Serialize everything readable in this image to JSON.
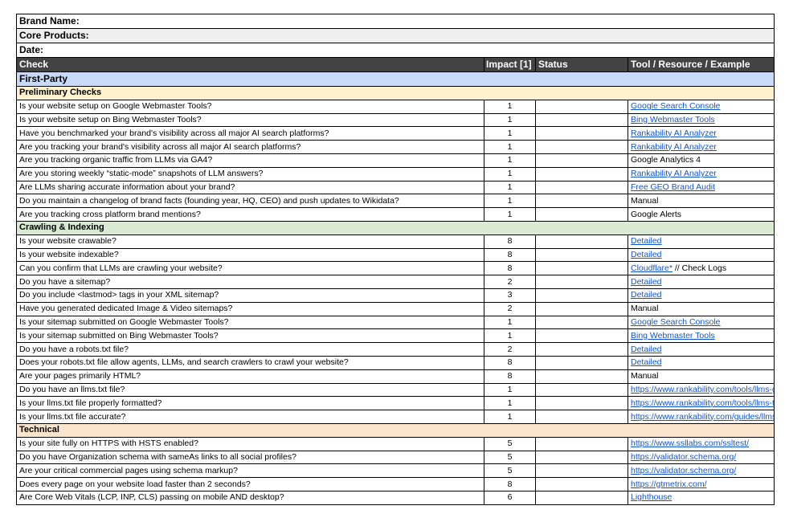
{
  "meta": {
    "brand_name": "Brand Name:",
    "core_products": "Core Products:",
    "date": "Date:"
  },
  "columns": {
    "check": "Check",
    "impact": "Impact [1]",
    "status": "Status",
    "tool": "Tool / Resource / Example"
  },
  "section": "First-Party",
  "colors": {
    "header_bg": "#434343",
    "section_bg": "#c9daf8",
    "link": "#1155cc"
  },
  "groups": [
    {
      "title": "Preliminary Checks",
      "color": "#fff2cc",
      "rows": [
        {
          "check": "Is your website setup on Google Webmaster Tools?",
          "impact": "1",
          "tool": "Google Search Console",
          "link": true
        },
        {
          "check": "Is your website setup on Bing Webmaster Tools?",
          "impact": "1",
          "tool": "Bing Webmaster Tools",
          "link": true
        },
        {
          "check": "Have you benchmarked your brand's visibility across all major AI search platforms?",
          "impact": "1",
          "tool": "Rankability AI Analyzer",
          "link": true
        },
        {
          "check": "Are you tracking your brand's visibility across all major AI search platforms?",
          "impact": "1",
          "tool": "Rankability AI Analyzer",
          "link": true
        },
        {
          "check": "Are you tracking organic traffic from LLMs via GA4?",
          "impact": "1",
          "tool": "Google Analytics 4",
          "link": false
        },
        {
          "check": "Are you storing weekly “static-mode” snapshots of LLM answers?",
          "impact": "1",
          "tool": "Rankability AI Analyzer",
          "link": true
        },
        {
          "check": "Are LLMs sharing accurate information about your brand?",
          "impact": "1",
          "tool": "Free GEO Brand Audit",
          "link": true
        },
        {
          "check": "Do you maintain a changelog of brand facts (founding year, HQ, CEO) and push updates to Wikidata?",
          "impact": "1",
          "tool": "Manual",
          "link": false
        },
        {
          "check": "Are you tracking cross platform brand mentions?",
          "impact": "1",
          "tool": "Google Alerts",
          "link": false
        }
      ]
    },
    {
      "title": "Crawling & Indexing",
      "color": "#d9ead3",
      "rows": [
        {
          "check": "Is your website crawable?",
          "impact": "8",
          "tool": "Detailed",
          "link": true
        },
        {
          "check": "Is your website indexable?",
          "impact": "8",
          "tool": "Detailed",
          "link": true
        },
        {
          "check": "Can you confirm that LLMs are crawling your website?",
          "impact": "8",
          "tool": "Cloudflare*",
          "link": true,
          "suffix": " // Check Logs"
        },
        {
          "check": "Do you have a sitemap?",
          "impact": "2",
          "tool": "Detailed",
          "link": true
        },
        {
          "check": "Do you include <lastmod> tags in your XML sitemap?",
          "impact": "3",
          "tool": "Detailed",
          "link": true
        },
        {
          "check": "Have you generated dedicated Image & Video sitemaps?",
          "impact": "2",
          "tool": "Manual",
          "link": false
        },
        {
          "check": "Is your sitemap submitted on Google Webmaster Tools?",
          "impact": "1",
          "tool": "Google Search Console",
          "link": true
        },
        {
          "check": "Is your sitemap submitted on Bing Webmaster Tools?",
          "impact": "1",
          "tool": "Bing Webmaster Tools",
          "link": true
        },
        {
          "check": "Do you have a robots.txt file?",
          "impact": "2",
          "tool": "Detailed",
          "link": true
        },
        {
          "check": "Does your robots.txt file allow agents, LLMs, and search crawlers to crawl your website?",
          "impact": "8",
          "tool": "Detailed",
          "link": true
        },
        {
          "check": "Are your pages primarily HTML?",
          "impact": "8",
          "tool": "Manual",
          "link": false
        },
        {
          "check": "Do you have an llms.txt file?",
          "impact": "1",
          "tool": "https://www.rankability.com/tools/llms-g",
          "link": true
        },
        {
          "check": "Is your llms.txt file properly formatted?",
          "impact": "1",
          "tool": "https://www.rankability.com/tools/llms-tx",
          "link": true
        },
        {
          "check": "Is your llms.txt file accurate?",
          "impact": "1",
          "tool": "https://www.rankability.com/guides/llms",
          "link": true
        }
      ]
    },
    {
      "title": "Technical",
      "color": "#fce5cd",
      "rows": [
        {
          "check": "Is your site fully on HTTPS with HSTS enabled?",
          "impact": "5",
          "tool": "https://www.ssllabs.com/ssltest/",
          "link": true
        },
        {
          "check": "Do you have Organization schema with sameAs links to all social profiles?",
          "impact": "5",
          "tool": "https://validator.schema.org/",
          "link": true
        },
        {
          "check": "Are your critical commercial pages using schema markup?",
          "impact": "5",
          "tool": "https://validator.schema.org/",
          "link": true
        },
        {
          "check": "Does every page on your website load faster than 2 seconds?",
          "impact": "8",
          "tool": "https://gtmetrix.com/",
          "link": true
        },
        {
          "check": "Are Core Web Vitals (LCP, INP, CLS) passing on mobile AND desktop?",
          "impact": "6",
          "tool": "Lighthouse",
          "link": true
        }
      ]
    }
  ]
}
